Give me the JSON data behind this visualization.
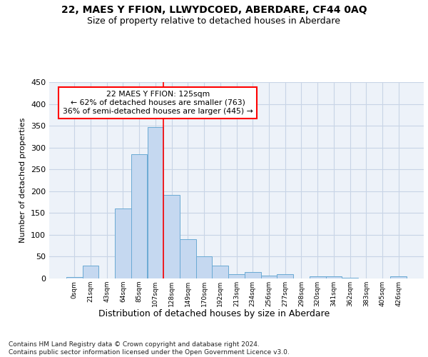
{
  "title": "22, MAES Y FFION, LLWYDCOED, ABERDARE, CF44 0AQ",
  "subtitle": "Size of property relative to detached houses in Aberdare",
  "xlabel": "Distribution of detached houses by size in Aberdare",
  "ylabel": "Number of detached properties",
  "bar_color": "#c5d8f0",
  "bar_edge_color": "#6aaad4",
  "categories": [
    "0sqm",
    "21sqm",
    "43sqm",
    "64sqm",
    "85sqm",
    "107sqm",
    "128sqm",
    "149sqm",
    "170sqm",
    "192sqm",
    "213sqm",
    "234sqm",
    "256sqm",
    "277sqm",
    "298sqm",
    "320sqm",
    "341sqm",
    "362sqm",
    "383sqm",
    "405sqm",
    "426sqm"
  ],
  "values": [
    3,
    30,
    0,
    160,
    285,
    347,
    191,
    90,
    50,
    30,
    10,
    15,
    7,
    10,
    0,
    5,
    5,
    1,
    0,
    0,
    5
  ],
  "highlight_index": 5,
  "annotation_text": "22 MAES Y FFION: 125sqm\n← 62% of detached houses are smaller (763)\n36% of semi-detached houses are larger (445) →",
  "annotation_box_color": "white",
  "annotation_box_edge_color": "red",
  "vline_color": "red",
  "ylim": [
    0,
    450
  ],
  "yticks": [
    0,
    50,
    100,
    150,
    200,
    250,
    300,
    350,
    400,
    450
  ],
  "footer_text": "Contains HM Land Registry data © Crown copyright and database right 2024.\nContains public sector information licensed under the Open Government Licence v3.0.",
  "bg_color": "#edf2f9",
  "grid_color": "#c8d4e6"
}
